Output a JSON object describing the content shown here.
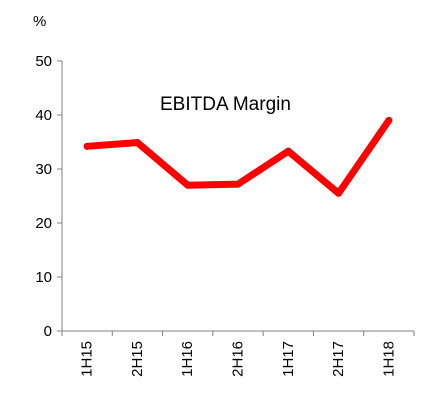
{
  "chart_data": {
    "type": "line",
    "title": "EBITDA Margin",
    "ylabel": "%",
    "xlabel": "",
    "categories": [
      "1H15",
      "2H15",
      "1H16",
      "2H16",
      "1H17",
      "2H17",
      "1H18"
    ],
    "series": [
      {
        "values": [
          34.2,
          34.9,
          27.0,
          27.2,
          33.3,
          25.5,
          39.0
        ],
        "color": "#ff0000"
      }
    ],
    "ylim": [
      0,
      50
    ],
    "yticks": [
      "0",
      "10",
      "20",
      "30",
      "40",
      "50"
    ],
    "grid": false,
    "legend": "none"
  }
}
